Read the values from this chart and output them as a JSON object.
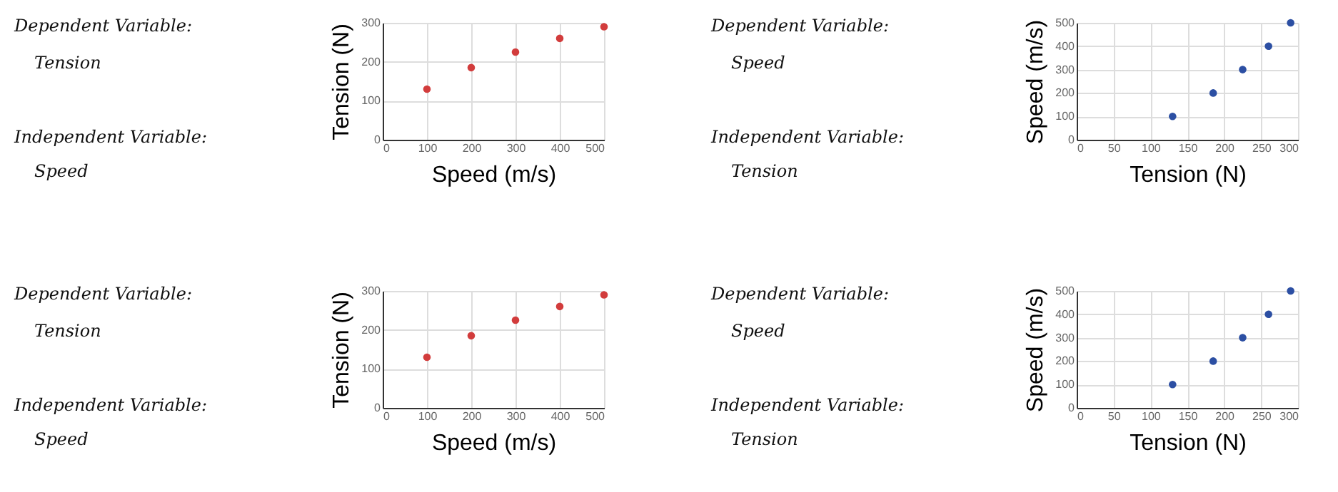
{
  "chart_data": [
    {
      "type": "other",
      "annotations": [
        "Dependent Variable:",
        "Tension",
        "Independent Variable:",
        "Speed"
      ]
    },
    {
      "type": "scatter",
      "xlabel": "Speed (m/s)",
      "ylabel": "Tension (N)",
      "x": [
        100,
        200,
        300,
        400,
        500
      ],
      "series": [
        {
          "color": "#d23c3c",
          "values": [
            130,
            185,
            225,
            260,
            290
          ]
        }
      ],
      "xlim": [
        0,
        500
      ],
      "xticks": [
        0,
        100,
        200,
        300,
        400,
        500
      ],
      "ylim": [
        0,
        300
      ],
      "yticks": [
        0,
        100,
        200,
        300
      ],
      "grid": true,
      "marker": "circle"
    },
    {
      "type": "other",
      "annotations": [
        "Dependent Variable:",
        "Speed",
        "Independent Variable:",
        "Tension"
      ]
    },
    {
      "type": "scatter",
      "xlabel": "Tension (N)",
      "ylabel": "Speed (m/s)",
      "x": [
        130,
        185,
        225,
        260,
        290
      ],
      "series": [
        {
          "color": "#2c4fa3",
          "values": [
            100,
            200,
            300,
            400,
            500
          ]
        }
      ],
      "xlim": [
        0,
        300
      ],
      "xticks": [
        0,
        50,
        100,
        150,
        200,
        250,
        300
      ],
      "ylim": [
        0,
        500
      ],
      "yticks": [
        0,
        100,
        200,
        300,
        400,
        500
      ],
      "grid": true,
      "marker": "circle"
    },
    {
      "type": "other",
      "annotations": [
        "Dependent Variable:",
        "Tension",
        "Independent Variable:",
        "Speed"
      ]
    },
    {
      "type": "scatter",
      "xlabel": "Speed (m/s)",
      "ylabel": "Tension (N)",
      "x": [
        100,
        200,
        300,
        400,
        500
      ],
      "series": [
        {
          "color": "#d23c3c",
          "values": [
            130,
            185,
            225,
            260,
            290
          ]
        }
      ],
      "xlim": [
        0,
        500
      ],
      "xticks": [
        0,
        100,
        200,
        300,
        400,
        500
      ],
      "ylim": [
        0,
        300
      ],
      "yticks": [
        0,
        100,
        200,
        300
      ],
      "grid": true,
      "marker": "circle"
    },
    {
      "type": "other",
      "annotations": [
        "Dependent Variable:",
        "Speed",
        "Independent Variable:",
        "Tension"
      ]
    },
    {
      "type": "scatter",
      "xlabel": "Tension (N)",
      "ylabel": "Speed (m/s)",
      "x": [
        130,
        185,
        225,
        260,
        290
      ],
      "series": [
        {
          "color": "#2c4fa3",
          "values": [
            100,
            200,
            300,
            400,
            500
          ]
        }
      ],
      "xlim": [
        0,
        300
      ],
      "xticks": [
        0,
        50,
        100,
        150,
        200,
        250,
        300
      ],
      "ylim": [
        0,
        500
      ],
      "yticks": [
        0,
        100,
        200,
        300,
        400,
        500
      ],
      "grid": true,
      "marker": "circle"
    }
  ]
}
